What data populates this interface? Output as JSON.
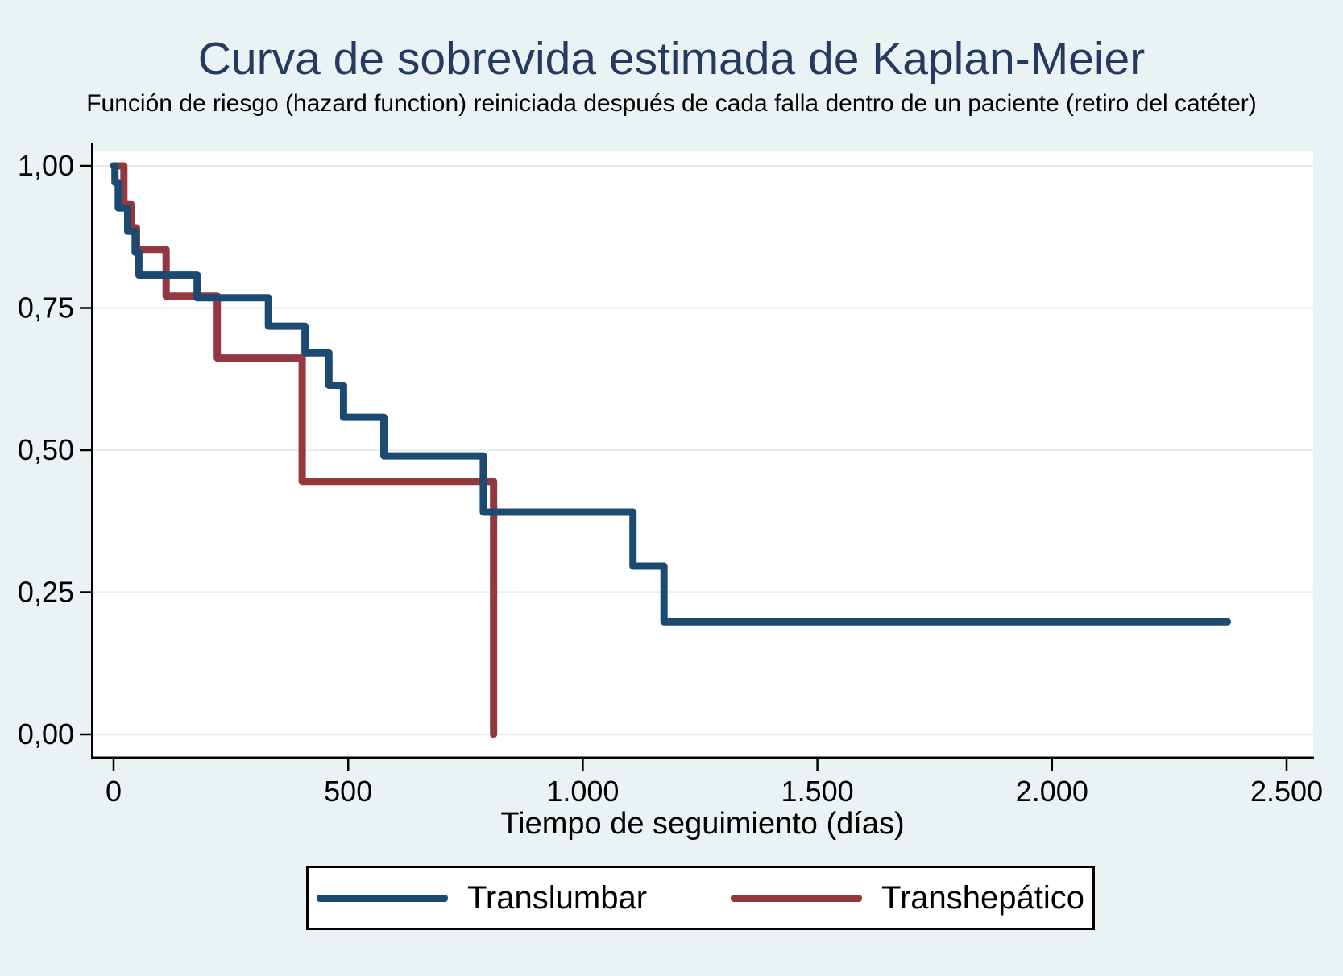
{
  "title": "Curva de sobrevida estimada de Kaplan-Meier",
  "subtitle": "Función de riesgo (hazard function) reiniciada después de cada falla dentro de un paciente (retiro del catéter)",
  "colors": {
    "background": "#eaf2f3",
    "plot_background": "#ffffff",
    "gridline": "#e7f0f1",
    "axis": "#000000",
    "title_text": "#26395f",
    "translumbar": "#1c4a70",
    "transhepatico": "#94383f"
  },
  "chart_data": {
    "type": "line",
    "subtype": "kaplan-meier-survival-step",
    "title": "Curva de sobrevida estimada de Kaplan-Meier",
    "subtitle": "Función de riesgo (hazard function) reiniciada después de cada falla dentro de un paciente (retiro del catéter)",
    "xlabel": "Tiempo de seguimiento (días)",
    "ylabel": "",
    "xlim": [
      0,
      2500
    ],
    "ylim": [
      0.0,
      1.0
    ],
    "grid": "horizontal",
    "legend_position": "bottom",
    "x_ticks": [
      {
        "value": 0,
        "label": "0"
      },
      {
        "value": 500,
        "label": "500"
      },
      {
        "value": 1000,
        "label": "1.000"
      },
      {
        "value": 1500,
        "label": "1.500"
      },
      {
        "value": 2000,
        "label": "2.000"
      },
      {
        "value": 2500,
        "label": "2.500"
      }
    ],
    "y_ticks": [
      {
        "value": 0.0,
        "label": "0,00"
      },
      {
        "value": 0.25,
        "label": "0,25"
      },
      {
        "value": 0.5,
        "label": "0,50"
      },
      {
        "value": 0.75,
        "label": "0,75"
      },
      {
        "value": 1.0,
        "label": "1,00"
      }
    ],
    "series": [
      {
        "name": "Translumbar",
        "color": "#1c4a70",
        "step_points_day_survival": [
          [
            0,
            1.0
          ],
          [
            3,
            0.971
          ],
          [
            10,
            0.926
          ],
          [
            30,
            0.885
          ],
          [
            46,
            0.848
          ],
          [
            54,
            0.808
          ],
          [
            178,
            0.768
          ],
          [
            330,
            0.718
          ],
          [
            408,
            0.671
          ],
          [
            459,
            0.614
          ],
          [
            490,
            0.558
          ],
          [
            576,
            0.49
          ],
          [
            788,
            0.391
          ],
          [
            1107,
            0.296
          ],
          [
            1173,
            0.198
          ],
          [
            2374,
            0.198
          ]
        ]
      },
      {
        "name": "Transhepático",
        "color": "#94383f",
        "step_points_day_survival": [
          [
            0,
            1.0
          ],
          [
            22,
            0.933
          ],
          [
            37,
            0.891
          ],
          [
            49,
            0.853
          ],
          [
            112,
            0.771
          ],
          [
            221,
            0.662
          ],
          [
            402,
            0.445
          ],
          [
            810,
            0.0
          ]
        ]
      }
    ]
  },
  "legend": {
    "entries": [
      {
        "label": "Translumbar",
        "color": "#1c4a70"
      },
      {
        "label": "Transhepático",
        "color": "#94383f"
      }
    ]
  }
}
